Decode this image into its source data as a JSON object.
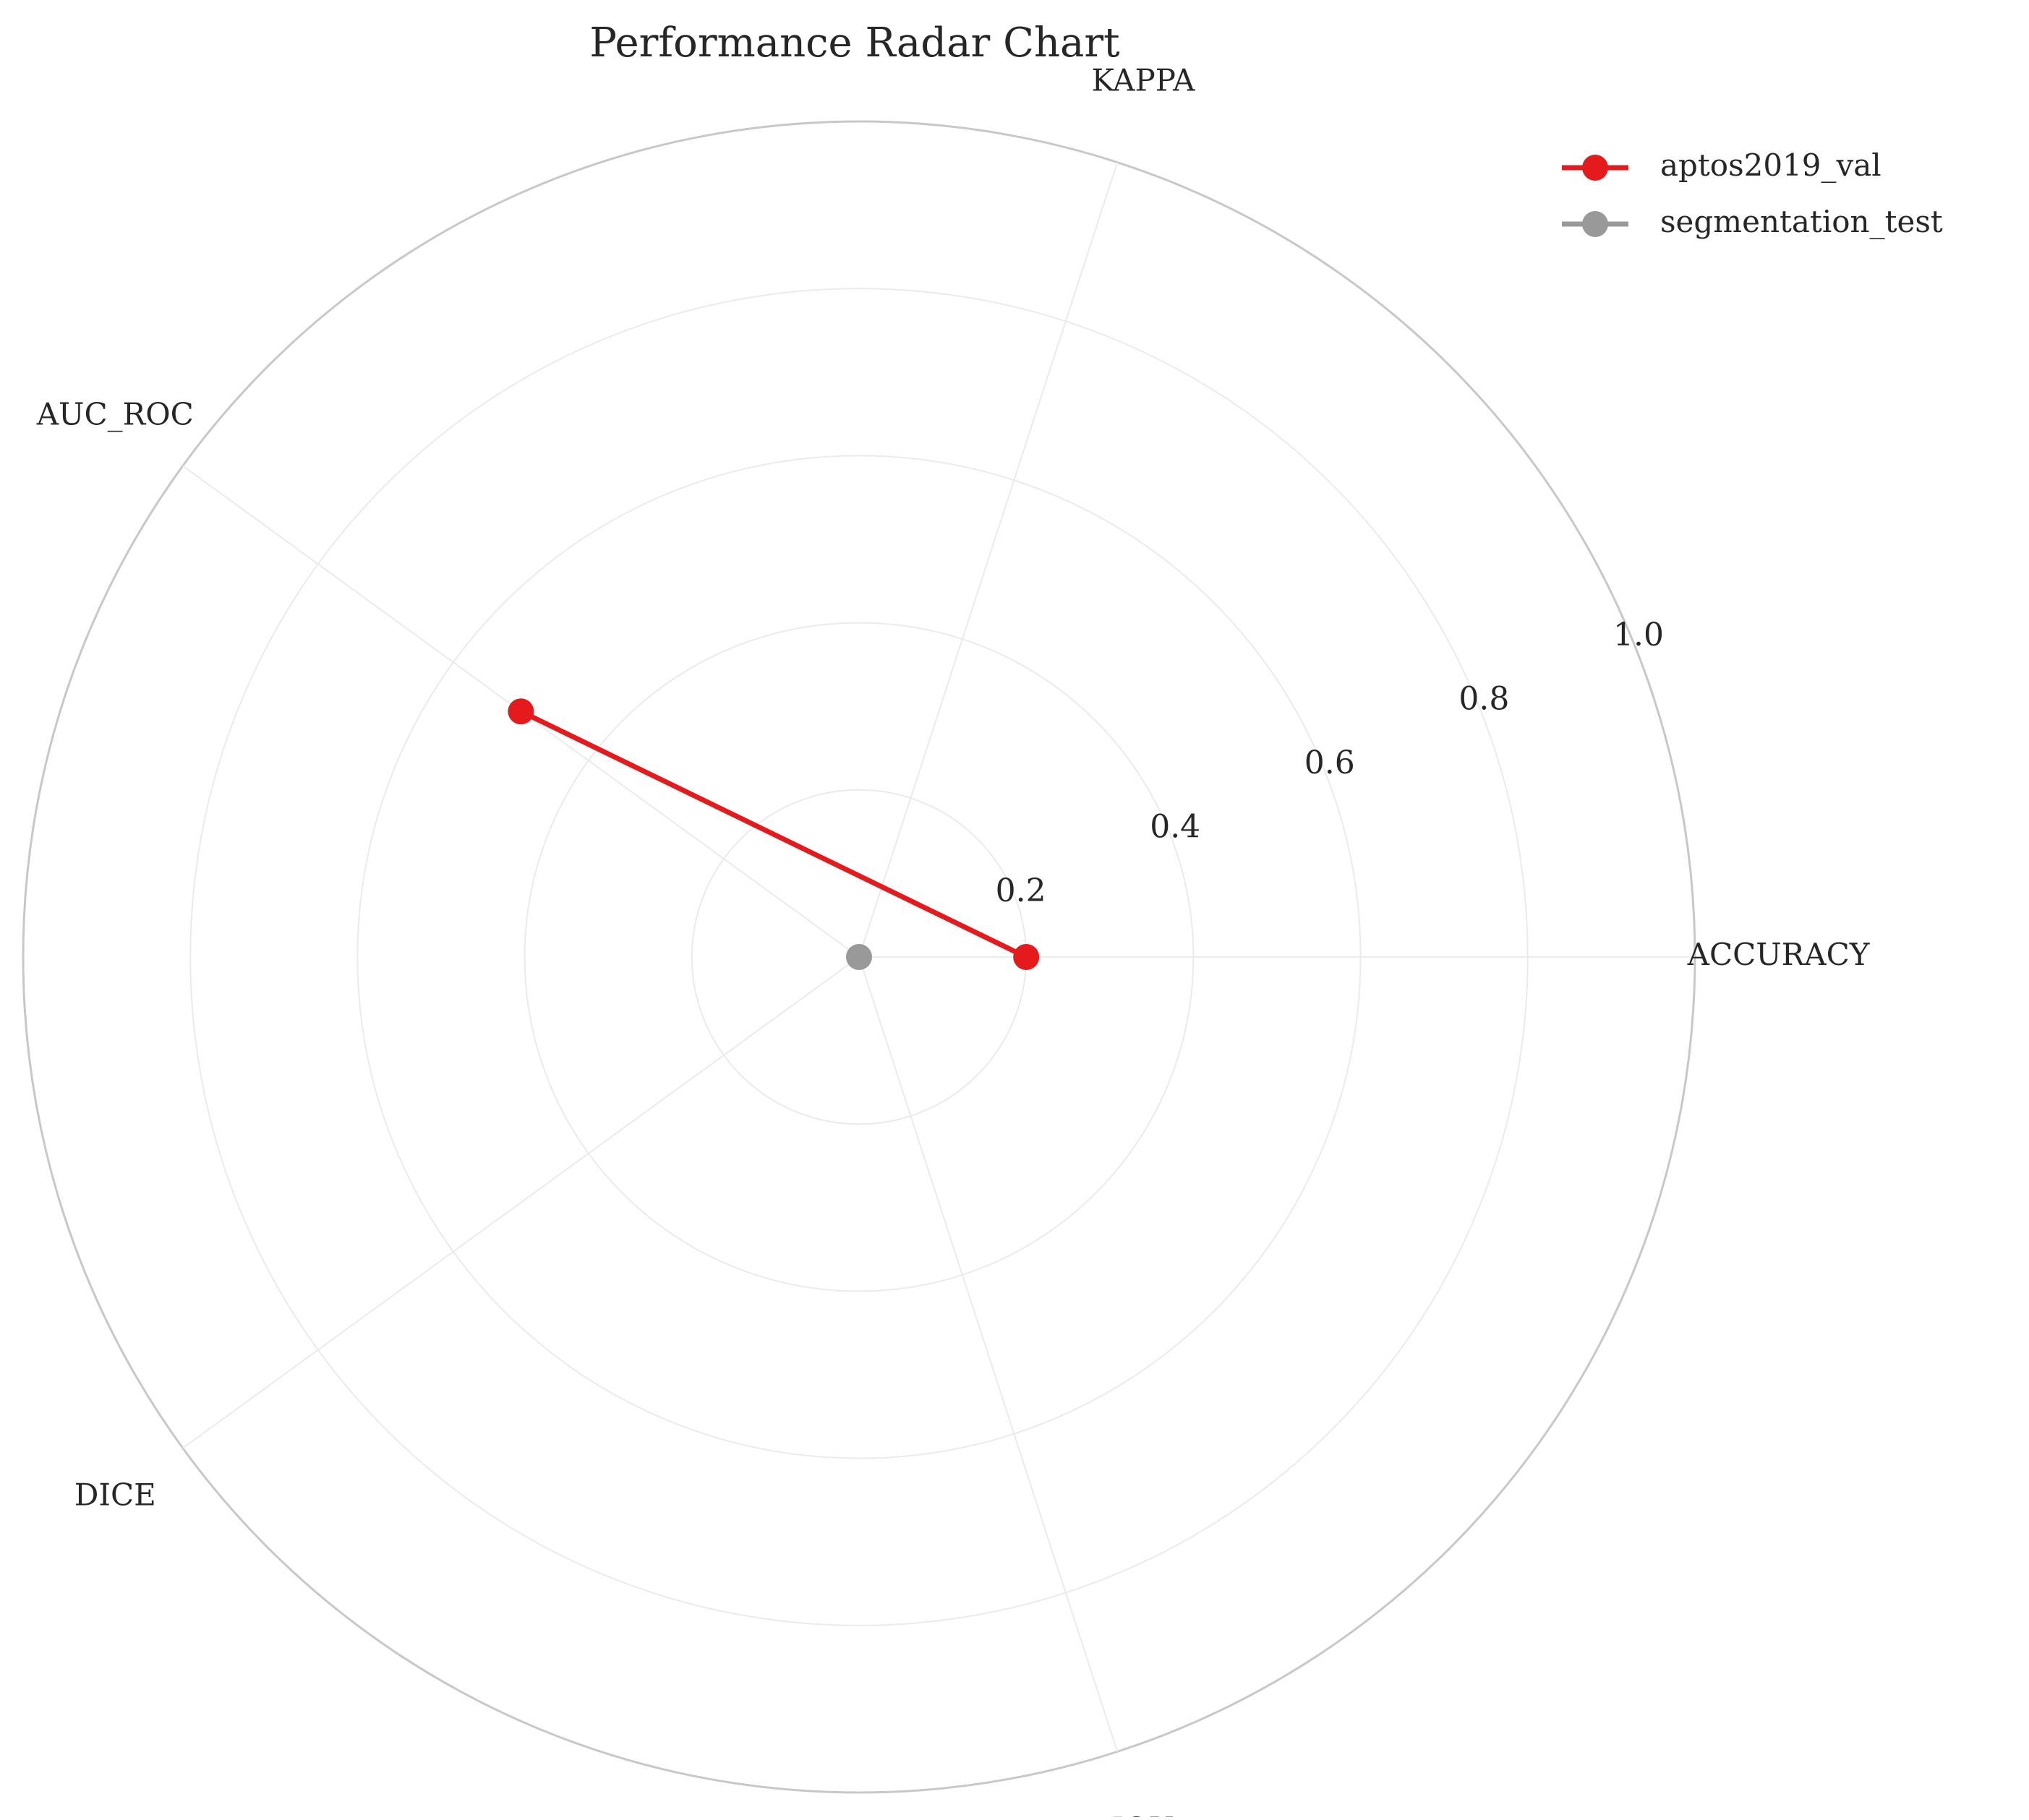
{
  "chart_data": {
    "type": "radar",
    "title": "Performance Radar Chart",
    "axes": [
      "ACCURACY",
      "KAPPA",
      "AUC_ROC",
      "DICE",
      "IOU"
    ],
    "rlim": [
      0,
      1.0
    ],
    "rticks": [
      0.2,
      0.4,
      0.6,
      0.8,
      1.0
    ],
    "rtick_labels": [
      "0.2",
      "0.4",
      "0.6",
      "0.8",
      "1.0"
    ],
    "grid": true,
    "legend_position": "top-right",
    "series": [
      {
        "name": "aptos2019_val",
        "color": "#e41a1c",
        "values": [
          0.2,
          null,
          0.5,
          null,
          null
        ]
      },
      {
        "name": "segmentation_test",
        "color": "#999999",
        "values": [
          0.0,
          null,
          null,
          null,
          null
        ]
      }
    ]
  }
}
